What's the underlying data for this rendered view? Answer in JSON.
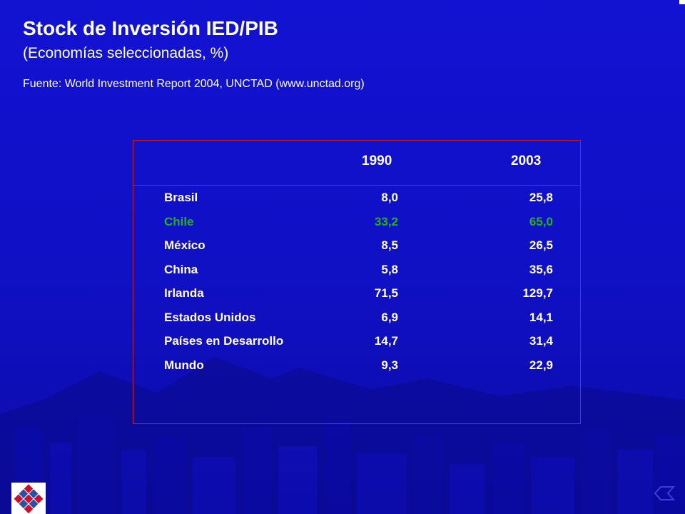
{
  "slide": {
    "title": "Stock de Inversión IED/PIB",
    "subtitle": "(Economías seleccionadas, %)",
    "source": "Fuente: World Investment Report 2004, UNCTAD (www.unctad.org)"
  },
  "table": {
    "columns": [
      "1990",
      "2003"
    ],
    "rows": [
      {
        "name": "Brasil",
        "v1990": "8,0",
        "v2003": "25,8"
      },
      {
        "name": "Chile",
        "v1990": "33,2",
        "v2003": "65,0"
      },
      {
        "name": "México",
        "v1990": "8,5",
        "v2003": "26,5"
      },
      {
        "name": "China",
        "v1990": "5,8",
        "v2003": "35,6"
      },
      {
        "name": "Irlanda",
        "v1990": "71,5",
        "v2003": "129,7"
      },
      {
        "name": "Estados Unidos",
        "v1990": "6,9",
        "v2003": "14,1"
      },
      {
        "name": "Países en Desarrollo",
        "v1990": "14,7",
        "v2003": "31,4"
      },
      {
        "name": "Mundo",
        "v1990": "9,3",
        "v2003": "22,9"
      }
    ],
    "highlight_row": "Chile",
    "highlight_color": "#1fb21f",
    "border_color": "#d01818"
  },
  "colors": {
    "background": "#1010c8",
    "text": "#ffffff"
  }
}
